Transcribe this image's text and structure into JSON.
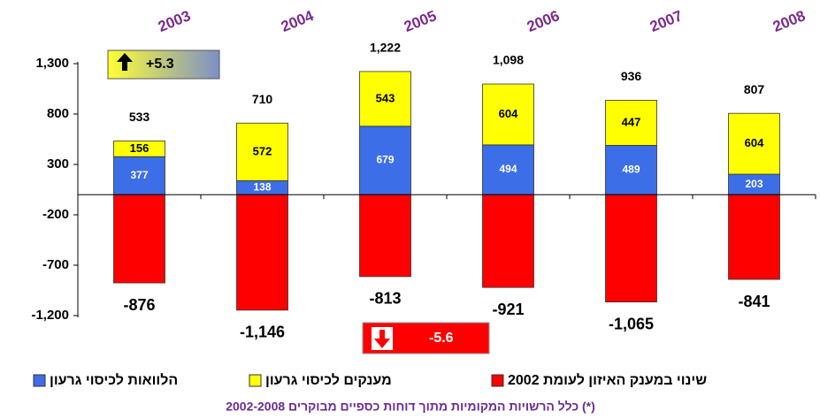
{
  "chart_data": {
    "type": "stacked_bar",
    "categories": [
      "2003",
      "2004",
      "2005",
      "2006",
      "2007",
      "2008"
    ],
    "series": [
      {
        "name": "הלוואות לכיסוי גרעון",
        "color": "#3c6ee8",
        "values": [
          377,
          138,
          679,
          494,
          489,
          203
        ]
      },
      {
        "name": "מענקים לכיסוי גרעון",
        "color": "#ffff00",
        "values": [
          156,
          572,
          543,
          604,
          447,
          604
        ]
      },
      {
        "name": "שינוי במענק האיזון לעומת 2002",
        "color": "#ff0000",
        "values": [
          -876,
          -1146,
          -813,
          -921,
          -1065,
          -841
        ],
        "value_labels": [
          "-876",
          "-1,146",
          "-813",
          "-921",
          "-1,065",
          "-841"
        ]
      }
    ],
    "totals": {
      "values": [
        533,
        710,
        1222,
        1098,
        936,
        807
      ],
      "value_labels": [
        "533",
        "710",
        "1,222",
        "1,098",
        "936",
        "807"
      ]
    },
    "ylim": [
      -1200,
      1300
    ],
    "yticks": [
      {
        "value": 1300,
        "label": "1,300"
      },
      800,
      300,
      -200,
      -700,
      {
        "value": -1200,
        "label": "-1,200"
      }
    ],
    "annotations": [
      "+5.3",
      "-5.6"
    ],
    "footnote": "(*) כלל הרשויות המקומיות מתוך דוחות כספיים מבוקרים 2002-2008"
  }
}
